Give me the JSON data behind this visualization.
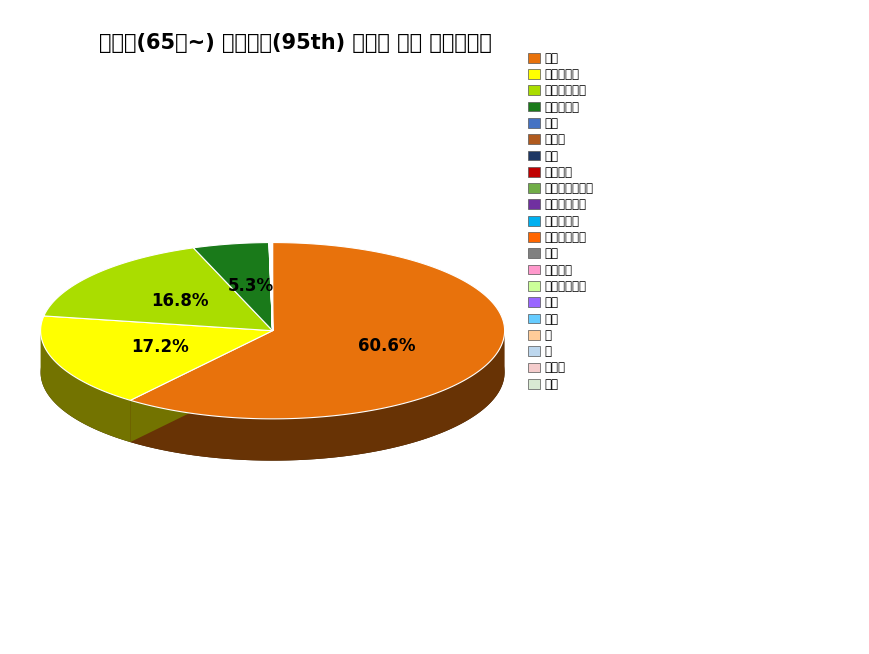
{
  "title": "전국민(65세~) 극단섭취(95th) 식품별 퓨란 노출기여도",
  "slices": [
    {
      "label": "소스",
      "value": 60.6,
      "color": "#E8720C",
      "show_pct": true
    },
    {
      "label": "과일통조림",
      "value": 17.2,
      "color": "#FFFF00",
      "show_pct": true
    },
    {
      "label": "인스턴트커피",
      "value": 16.8,
      "color": "#AADD00",
      "show_pct": true
    },
    {
      "label": "당류가공품",
      "value": 5.3,
      "color": "#1A7A1A",
      "show_pct": true
    },
    {
      "label": "분유",
      "value": 0.015,
      "color": "#4472C4",
      "show_pct": false
    },
    {
      "label": "이유식",
      "value": 0.015,
      "color": "#B05A1E",
      "show_pct": false
    },
    {
      "label": "음료",
      "value": 0.015,
      "color": "#1F3864",
      "show_pct": false
    },
    {
      "label": "과일주스",
      "value": 0.015,
      "color": "#C00000",
      "show_pct": false
    },
    {
      "label": "곡류두류통조림",
      "value": 0.015,
      "color": "#70AD47",
      "show_pct": false
    },
    {
      "label": "채소류통조림",
      "value": 0.015,
      "color": "#7030A0",
      "show_pct": false
    },
    {
      "label": "육류통조림",
      "value": 0.015,
      "color": "#00B0F0",
      "show_pct": false
    },
    {
      "label": "수산물통조림",
      "value": 0.015,
      "color": "#FF6600",
      "show_pct": false
    },
    {
      "label": "스프",
      "value": 0.015,
      "color": "#808080",
      "show_pct": false
    },
    {
      "label": "원두커피",
      "value": 0.015,
      "color": "#FF99CC",
      "show_pct": false
    },
    {
      "label": "영양강화음료",
      "value": 0.015,
      "color": "#CCFF99",
      "show_pct": false
    },
    {
      "label": "카레",
      "value": 0.015,
      "color": "#9966FF",
      "show_pct": false
    },
    {
      "label": "짜장",
      "value": 0.015,
      "color": "#66CCFF",
      "show_pct": false
    },
    {
      "label": "국",
      "value": 0.015,
      "color": "#FFCC99",
      "show_pct": false
    },
    {
      "label": "빵",
      "value": 0.015,
      "color": "#BDD7EE",
      "show_pct": false
    },
    {
      "label": "비스킷",
      "value": 0.015,
      "color": "#F4CCCC",
      "show_pct": false
    },
    {
      "label": "스낵",
      "value": 0.015,
      "color": "#D9EAD3",
      "show_pct": false
    }
  ],
  "pct_labels": [
    "60.6%",
    "17.2%",
    "16.8%",
    "5.3%"
  ],
  "title_fontsize": 15,
  "background_color": "#FFFFFF"
}
